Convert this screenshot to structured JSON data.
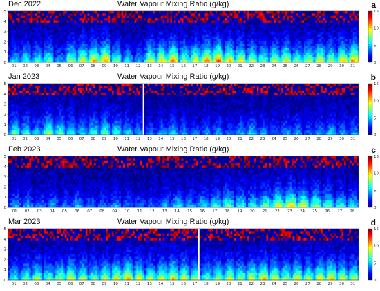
{
  "panels": [
    {
      "month": "Dec 2022",
      "title": "Water Vapour Mixing Ratio (g/kg)",
      "letter": "a",
      "days": 31,
      "gaps": [],
      "chart_data": {
        "type": "heatmap",
        "title": "Water Vapour Mixing Ratio (g/kg)",
        "xlabel": "",
        "ylabel": "",
        "x_ticks": [
          "01",
          "02",
          "03",
          "04",
          "05",
          "06",
          "07",
          "08",
          "09",
          "10",
          "11",
          "12",
          "13",
          "14",
          "15",
          "16",
          "17",
          "18",
          "19",
          "20",
          "21",
          "22",
          "23",
          "24",
          "25",
          "26",
          "27",
          "28",
          "29",
          "30",
          "31"
        ],
        "y_ticks": [
          0,
          1,
          2,
          3,
          4,
          5
        ],
        "ylim": [
          0,
          5
        ],
        "colorbar_ticks": [
          0,
          5,
          10,
          15
        ],
        "colorbar_range": [
          0,
          15
        ],
        "colormap": "jet",
        "daily_surface_level": [
          6,
          7,
          7,
          8,
          5,
          9,
          10,
          11,
          12,
          8,
          6,
          5,
          10,
          11,
          12,
          9,
          10,
          12,
          13,
          11,
          10,
          9,
          8,
          9,
          10,
          8,
          9,
          10,
          9,
          11,
          12
        ]
      }
    },
    {
      "month": "Jan 2023",
      "title": "Water Vapour Mixing Ratio (g/kg)",
      "letter": "b",
      "days": 31,
      "gaps": [
        12.4
      ],
      "chart_data": {
        "type": "heatmap",
        "title": "Water Vapour Mixing Ratio (g/kg)",
        "xlabel": "",
        "ylabel": "",
        "x_ticks": [
          "01",
          "02",
          "03",
          "04",
          "05",
          "06",
          "07",
          "08",
          "09",
          "10",
          "11",
          "12",
          "13",
          "14",
          "15",
          "16",
          "17",
          "18",
          "19",
          "20",
          "21",
          "22",
          "23",
          "24",
          "25",
          "26",
          "27",
          "28",
          "29",
          "30",
          "31"
        ],
        "y_ticks": [
          0,
          1,
          2,
          3,
          4,
          5
        ],
        "ylim": [
          0,
          5
        ],
        "colorbar_ticks": [
          0,
          5,
          10,
          15
        ],
        "colorbar_range": [
          0,
          15
        ],
        "colormap": "jet",
        "daily_surface_level": [
          8,
          7,
          6,
          9,
          8,
          7,
          6,
          7,
          8,
          7,
          6,
          5,
          4,
          5,
          6,
          5,
          4,
          5,
          5,
          4,
          5,
          6,
          5,
          4,
          5,
          5,
          4,
          5,
          6,
          5,
          5
        ]
      }
    },
    {
      "month": "Feb 2023",
      "title": "Water Vapour Mixing Ratio (g/kg)",
      "letter": "c",
      "days": 28,
      "gaps": [],
      "chart_data": {
        "type": "heatmap",
        "title": "Water Vapour Mixing Ratio (g/kg)",
        "xlabel": "",
        "ylabel": "",
        "x_ticks": [
          "01",
          "02",
          "03",
          "04",
          "05",
          "06",
          "07",
          "08",
          "09",
          "10",
          "11",
          "12",
          "13",
          "14",
          "15",
          "16",
          "17",
          "18",
          "19",
          "20",
          "21",
          "22",
          "23",
          "24",
          "25",
          "26",
          "27",
          "28"
        ],
        "y_ticks": [
          0,
          1,
          2,
          3,
          4,
          5
        ],
        "ylim": [
          0,
          5
        ],
        "colorbar_ticks": [
          0,
          5,
          10,
          15
        ],
        "colorbar_range": [
          0,
          15
        ],
        "colormap": "jet",
        "daily_surface_level": [
          5,
          5,
          4,
          5,
          4,
          5,
          4,
          4,
          5,
          4,
          4,
          4,
          5,
          6,
          5,
          6,
          7,
          8,
          7,
          7,
          8,
          10,
          11,
          10,
          9,
          8,
          7,
          6
        ]
      }
    },
    {
      "month": "Mar 2023",
      "title": "Water Vapour Mixing Ratio (g/kg)",
      "letter": "d",
      "days": 31,
      "gaps": [
        17.3
      ],
      "chart_data": {
        "type": "heatmap",
        "title": "Water Vapour Mixing Ratio (g/kg)",
        "xlabel": "",
        "ylabel": "",
        "x_ticks": [
          "01",
          "02",
          "03",
          "04",
          "05",
          "06",
          "07",
          "08",
          "09",
          "10",
          "11",
          "12",
          "13",
          "14",
          "15",
          "16",
          "17",
          "18",
          "19",
          "20",
          "21",
          "22",
          "23",
          "24",
          "25",
          "26",
          "27",
          "28",
          "29",
          "30",
          "31"
        ],
        "y_ticks": [
          0,
          1,
          2,
          3,
          4,
          5
        ],
        "ylim": [
          0,
          5
        ],
        "colorbar_ticks": [
          0,
          5,
          10,
          15
        ],
        "colorbar_range": [
          0,
          15
        ],
        "colormap": "jet",
        "daily_surface_level": [
          7,
          8,
          9,
          8,
          9,
          10,
          9,
          8,
          9,
          10,
          11,
          10,
          9,
          10,
          11,
          10,
          9,
          8,
          9,
          10,
          9,
          10,
          11,
          10,
          9,
          10,
          9,
          10,
          11,
          10,
          9
        ]
      }
    }
  ]
}
